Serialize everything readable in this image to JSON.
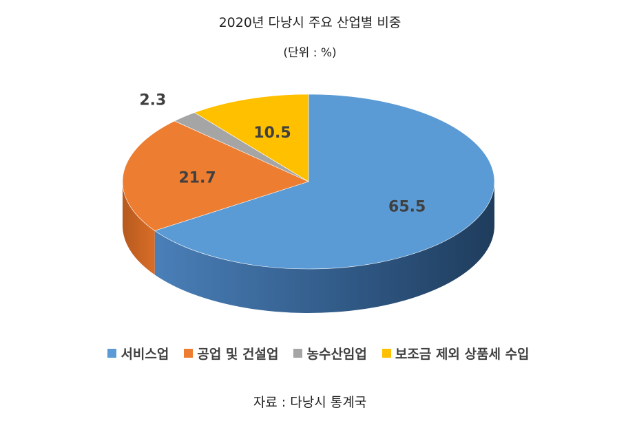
{
  "chart_data": {
    "type": "pie",
    "title": "2020년 다낭시 주요 산업별 비중",
    "subtitle": "(단위 : %)",
    "categories": [
      "서비스업",
      "공업 및 건설업",
      "농수산임업",
      "보조금 제외 상품세 수입"
    ],
    "values": [
      65.5,
      21.7,
      2.3,
      10.5
    ],
    "data_labels": [
      "65.5",
      "21.7",
      "2.3",
      "10.5"
    ],
    "colors": [
      "#5b9bd5",
      "#ed7d31",
      "#a5a5a5",
      "#ffc000"
    ],
    "start": "12 o'clock, clockwise",
    "three_d": true,
    "legend_position": "bottom",
    "source": "자료 : 다낭시 통계국"
  }
}
